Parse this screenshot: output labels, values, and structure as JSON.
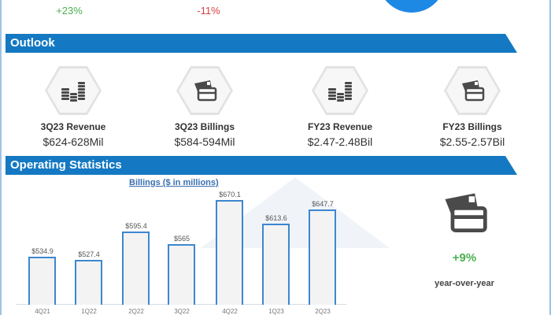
{
  "top_stats": [
    {
      "value": "+23%",
      "tone": "positive"
    },
    {
      "value": "-11%",
      "tone": "negative"
    }
  ],
  "sections": {
    "outlook": "Outlook",
    "operating": "Operating Statistics"
  },
  "outlook": [
    {
      "icon": "coin-stacks-icon",
      "label": "3Q23 Revenue",
      "value": "$624-628Mil"
    },
    {
      "icon": "credit-cards-icon",
      "label": "3Q23 Billings",
      "value": "$584-594Mil"
    },
    {
      "icon": "coin-stacks-icon",
      "label": "FY23 Revenue",
      "value": "$2.47-2.48Bil"
    },
    {
      "icon": "credit-cards-icon",
      "label": "FY23 Billings",
      "value": "$2.55-2.57Bil"
    }
  ],
  "side_stat": {
    "icon": "credit-cards-icon",
    "value": "+9%",
    "caption": "year-over-year"
  },
  "colors": {
    "banner": "#1479c2",
    "bar_border": "#3c87d0",
    "positive": "#4caf50",
    "negative": "#d84040"
  },
  "chart_data": {
    "type": "bar",
    "title": "Billings ($ in millions)",
    "categories": [
      "4Q21",
      "1Q22",
      "2Q22",
      "3Q22",
      "4Q22",
      "1Q23",
      "2Q23"
    ],
    "values": [
      534.9,
      527.4,
      595.4,
      565,
      670.1,
      613.6,
      647.7
    ],
    "value_labels": [
      "$534.9",
      "$527.4",
      "$595.4",
      "$565",
      "$670.1",
      "$613.6",
      "$647.7"
    ],
    "xlabel": "",
    "ylabel": "",
    "grid": false,
    "legend": "none"
  }
}
